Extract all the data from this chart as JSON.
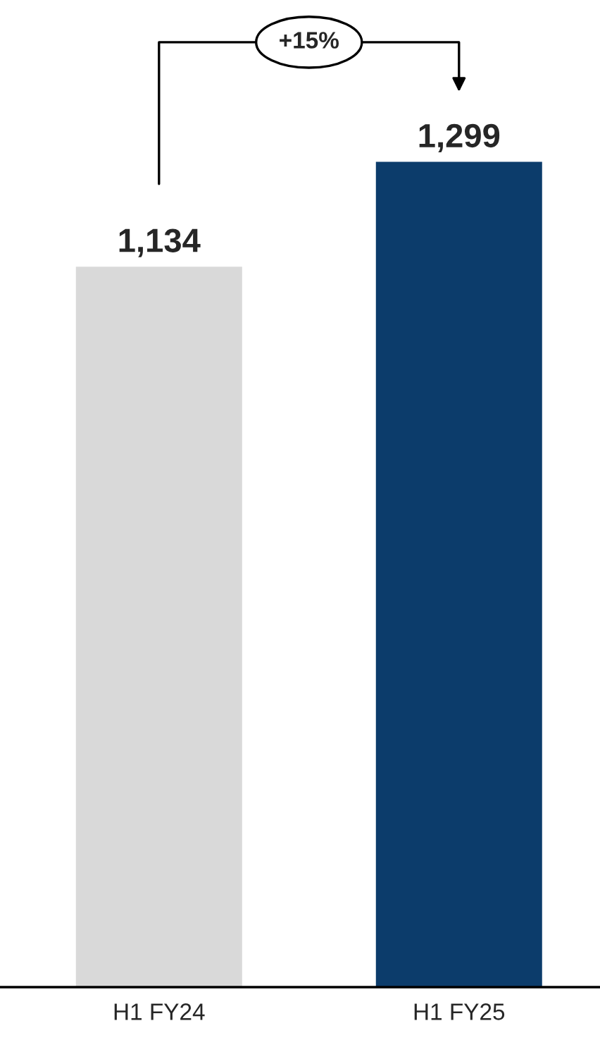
{
  "chart_data": {
    "type": "bar",
    "categories": [
      "H1 FY24",
      "H1 FY25"
    ],
    "values": [
      1134,
      1299
    ],
    "colors": [
      "#d9d9d9",
      "#0c3c6b"
    ],
    "value_labels": [
      "1,134",
      "1,299"
    ],
    "annotations": [
      "+15%"
    ],
    "grid": false,
    "legend": false
  }
}
